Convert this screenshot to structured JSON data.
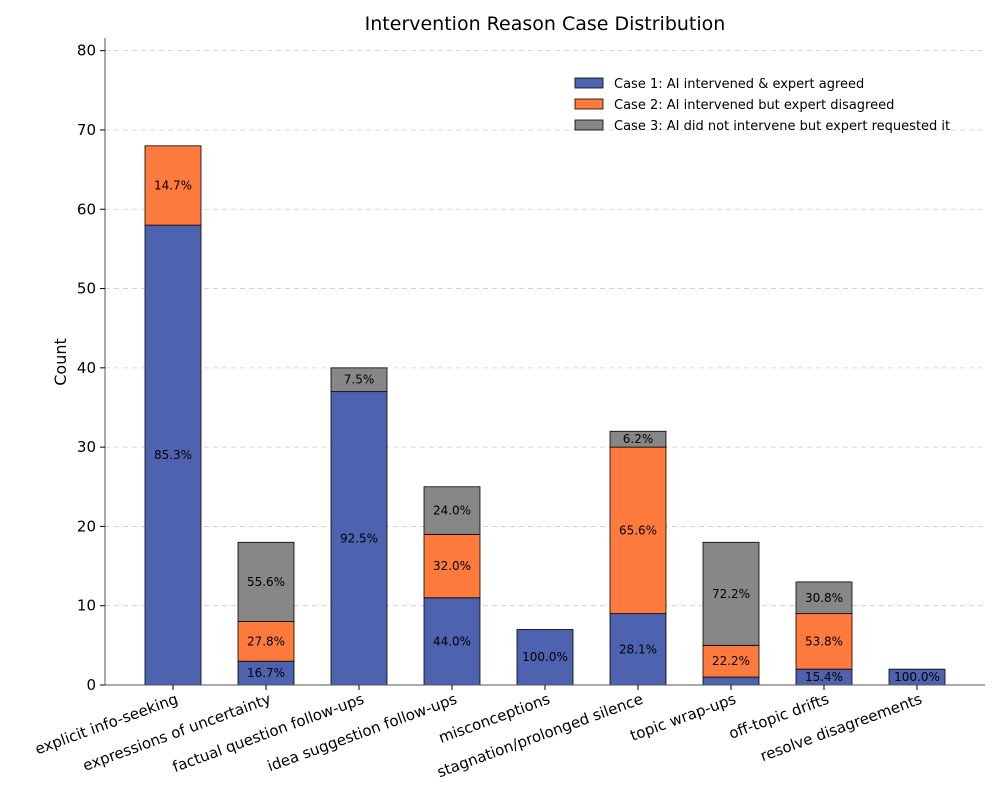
{
  "chart_data": {
    "type": "bar",
    "stacked": true,
    "title": "Intervention Reason Case Distribution",
    "xlabel": "",
    "ylabel": "Count",
    "ylim": [
      0,
      80
    ],
    "yticks": [
      0,
      10,
      20,
      30,
      40,
      50,
      60,
      70,
      80
    ],
    "grid": true,
    "legend_position": "top-right",
    "categories": [
      "explicit info-seeking",
      "expressions of uncertainty",
      "factual question follow-ups",
      "idea suggestion follow-ups",
      "misconceptions",
      "stagnation/prolonged silence",
      "topic wrap-ups",
      "off-topic drifts",
      "resolve disagreements"
    ],
    "series": [
      {
        "name": "Case 1: AI intervened & expert agreed",
        "color": "#4e63b0",
        "values": [
          58,
          3,
          37,
          11,
          7,
          9,
          1,
          2,
          2
        ],
        "labels": [
          "85.3%",
          "16.7%",
          "92.5%",
          "44.0%",
          "100.0%",
          "28.1%",
          "",
          "15.4%",
          "100.0%"
        ]
      },
      {
        "name": "Case 2: AI intervened but expert disagreed",
        "color": "#ff7a3d",
        "values": [
          10,
          5,
          0,
          8,
          0,
          21,
          4,
          7,
          0
        ],
        "labels": [
          "14.7%",
          "27.8%",
          "",
          "32.0%",
          "",
          "65.6%",
          "22.2%",
          "53.8%",
          ""
        ]
      },
      {
        "name": "Case 3: AI did not intervene but expert requested it",
        "color": "#878787",
        "values": [
          0,
          10,
          3,
          6,
          0,
          2,
          13,
          4,
          0
        ],
        "labels": [
          "",
          "55.6%",
          "7.5%",
          "24.0%",
          "",
          "6.2%",
          "72.2%",
          "30.8%",
          ""
        ]
      }
    ]
  }
}
